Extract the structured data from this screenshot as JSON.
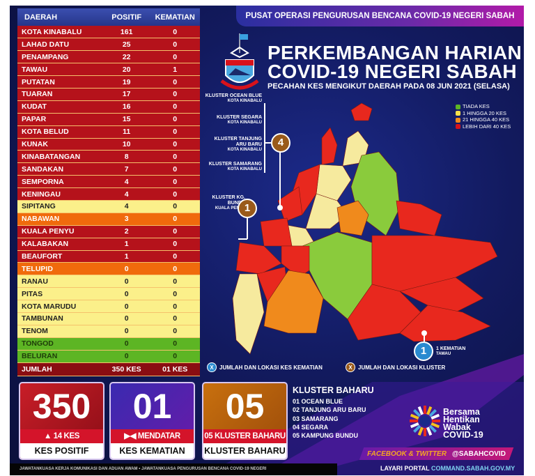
{
  "header": {
    "org": "PUSAT OPERASI PENGURUSAN BENCANA COVID-19 NEGERI SABAH",
    "title_line1": "PERKEMBANGAN HARIAN",
    "title_line2": "COVID-19 NEGERI SABAH",
    "subtitle": "PECAHAN KES MENGIKUT DAERAH PADA 08 JUN 2021 (SELASA)"
  },
  "table": {
    "headers": [
      "DAERAH",
      "POSITIF",
      "KEMATIAN"
    ],
    "rows": [
      {
        "daerah": "KOTA KINABALU",
        "positif": "161",
        "kematian": "0",
        "level": "red"
      },
      {
        "daerah": "LAHAD DATU",
        "positif": "25",
        "kematian": "0",
        "level": "red"
      },
      {
        "daerah": "PENAMPANG",
        "positif": "22",
        "kematian": "0",
        "level": "red"
      },
      {
        "daerah": "TAWAU",
        "positif": "20",
        "kematian": "1",
        "level": "red"
      },
      {
        "daerah": "PUTATAN",
        "positif": "19",
        "kematian": "0",
        "level": "red"
      },
      {
        "daerah": "TUARAN",
        "positif": "17",
        "kematian": "0",
        "level": "red"
      },
      {
        "daerah": "KUDAT",
        "positif": "16",
        "kematian": "0",
        "level": "red"
      },
      {
        "daerah": "PAPAR",
        "positif": "15",
        "kematian": "0",
        "level": "red"
      },
      {
        "daerah": "KOTA BELUD",
        "positif": "11",
        "kematian": "0",
        "level": "red"
      },
      {
        "daerah": "KUNAK",
        "positif": "10",
        "kematian": "0",
        "level": "red"
      },
      {
        "daerah": "KINABATANGAN",
        "positif": "8",
        "kematian": "0",
        "level": "red"
      },
      {
        "daerah": "SANDAKAN",
        "positif": "7",
        "kematian": "0",
        "level": "red"
      },
      {
        "daerah": "SEMPORNA",
        "positif": "4",
        "kematian": "0",
        "level": "red"
      },
      {
        "daerah": "KENINGAU",
        "positif": "4",
        "kematian": "0",
        "level": "red"
      },
      {
        "daerah": "SIPITANG",
        "positif": "4",
        "kematian": "0",
        "level": "yel"
      },
      {
        "daerah": "NABAWAN",
        "positif": "3",
        "kematian": "0",
        "level": "ora"
      },
      {
        "daerah": "KUALA PENYU",
        "positif": "2",
        "kematian": "0",
        "level": "red"
      },
      {
        "daerah": "KALABAKAN",
        "positif": "1",
        "kematian": "0",
        "level": "red"
      },
      {
        "daerah": "BEAUFORT",
        "positif": "1",
        "kematian": "0",
        "level": "red"
      },
      {
        "daerah": "TELUPID",
        "positif": "0",
        "kematian": "0",
        "level": "ora"
      },
      {
        "daerah": "RANAU",
        "positif": "0",
        "kematian": "0",
        "level": "yel"
      },
      {
        "daerah": "PITAS",
        "positif": "0",
        "kematian": "0",
        "level": "yel"
      },
      {
        "daerah": "KOTA MARUDU",
        "positif": "0",
        "kematian": "0",
        "level": "yel"
      },
      {
        "daerah": "TAMBUNAN",
        "positif": "0",
        "kematian": "0",
        "level": "yel"
      },
      {
        "daerah": "TENOM",
        "positif": "0",
        "kematian": "0",
        "level": "yel"
      },
      {
        "daerah": "TONGOD",
        "positif": "0",
        "kematian": "0",
        "level": "grn"
      },
      {
        "daerah": "BELURAN",
        "positif": "0",
        "kematian": "0",
        "level": "grn"
      }
    ],
    "total": {
      "label": "JUMLAH",
      "positif": "350 KES",
      "kematian": "01 KES"
    }
  },
  "legend": [
    {
      "label": "TIADA KES",
      "color": "#5db524"
    },
    {
      "label": "1 HINGGA 20 KES",
      "color": "#f7e04a"
    },
    {
      "label": "21 HINGGA 40 KES",
      "color": "#f08a1c"
    },
    {
      "label": "LEBIH DARI 40 KES",
      "color": "#d8121b"
    }
  ],
  "clusters": [
    {
      "name": "KLUSTER OCEAN BLUE",
      "loc": "KOTA KINABALU"
    },
    {
      "name": "KLUSTER SEGARA",
      "loc": "KOTA KINABALU"
    },
    {
      "name": "KLUSTER TANJUNG ARU BARU",
      "loc": "KOTA KINABALU"
    },
    {
      "name": "KLUSTER SAMARANG",
      "loc": "KOTA KINABALU"
    },
    {
      "name": "KLUSTER KG. BUNDU",
      "loc": "KUALA PENYU"
    }
  ],
  "badges": {
    "kk_clusters": "4",
    "kp_clusters": "1",
    "tawau_deaths": "1"
  },
  "death_note": {
    "label": "1 KEMATIAN",
    "loc": "TAWAU"
  },
  "map_legend": {
    "death": "JUMLAH DAN LOKASI KES KEMATIAN",
    "cluster": "JUMLAH DAN LOKASI KLUSTER",
    "symbol": "X"
  },
  "cards": [
    {
      "value": "350",
      "change": "▲ 14 KES",
      "label": "KES POSITIF"
    },
    {
      "value": "01",
      "change": "▶◀ MENDATAR",
      "label": "KES KEMATIAN"
    },
    {
      "value": "05",
      "change": "05 KLUSTER BAHARU",
      "label": "KLUSTER BAHARU"
    }
  ],
  "new_clusters": {
    "title": "KLUSTER BAHARU",
    "items": [
      "01  OCEAN BLUE",
      "02  TANJUNG ARU BARU",
      "03  SAMARANG",
      "04  SEGARA",
      "05  KAMPUNG BUNDU"
    ]
  },
  "campaign": {
    "l1": "Bersama",
    "l2": "Hentikan",
    "l3": "Wabak",
    "l4": "COVID-19"
  },
  "social": {
    "label": "FACEBOOK & TWITTER",
    "handle": "@SABAHCOVID"
  },
  "portal": {
    "label": "LAYARI PORTAL",
    "url": "COMMAND.SABAH.GOV.MY"
  },
  "footer": "JAWATANKUASA KERJA KOMUNIKASI DAN ADUAN AWAM • JAWATANKUASA PENGURUSAN BENCANA COVID-19 NEGERI"
}
